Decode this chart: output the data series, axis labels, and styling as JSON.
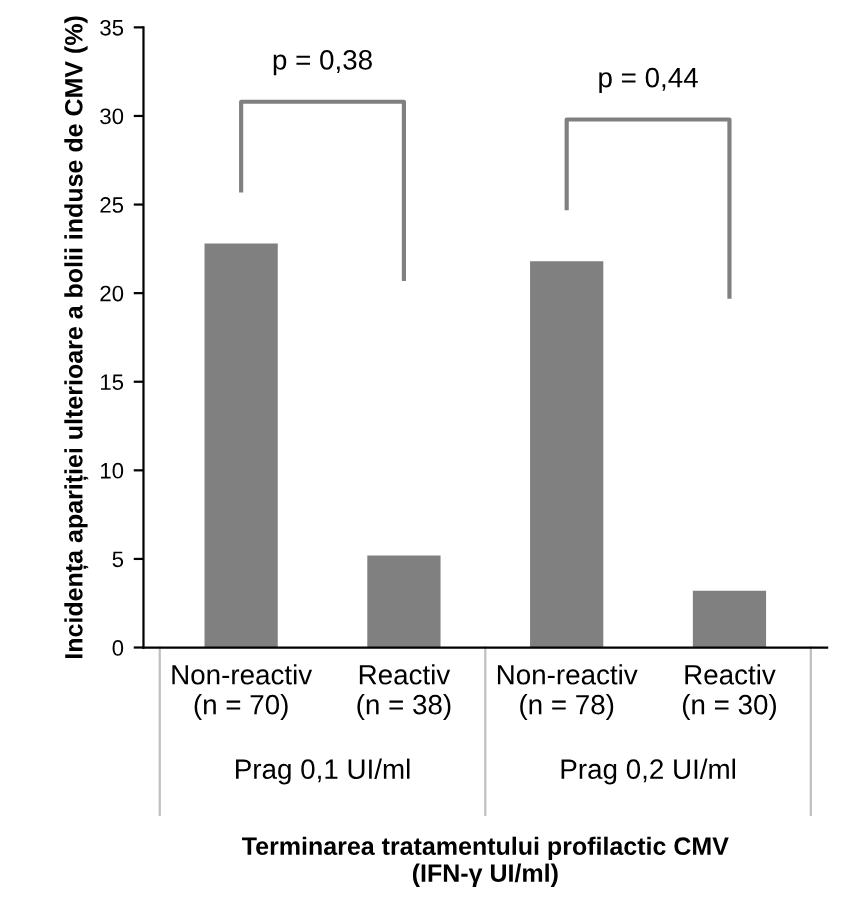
{
  "chart_data": {
    "type": "bar",
    "categories": [
      "Non-reactiv\n(n = 70)",
      "Reactiv\n(n = 38)",
      "Non-reactiv\n(n = 78)",
      "Reactiv\n(n = 30)"
    ],
    "values": [
      22.8,
      5.2,
      21.8,
      3.2
    ],
    "color": "#808080",
    "ylim": [
      0,
      35
    ],
    "yticks": [
      0,
      5,
      10,
      15,
      20,
      25,
      30,
      35
    ],
    "ylabel": "Incidența apariției ulterioare a bolii induse de CMV (%)",
    "xlabel": "Terminarea tratamentului profilactic CMV\n(IFN-γ UI/ml)",
    "annotations": [
      "p = 0,38",
      "p = 0,44",
      "Prag 0,1 UI/ml",
      "Prag 0,2 UI/ml"
    ],
    "grid": false
  }
}
